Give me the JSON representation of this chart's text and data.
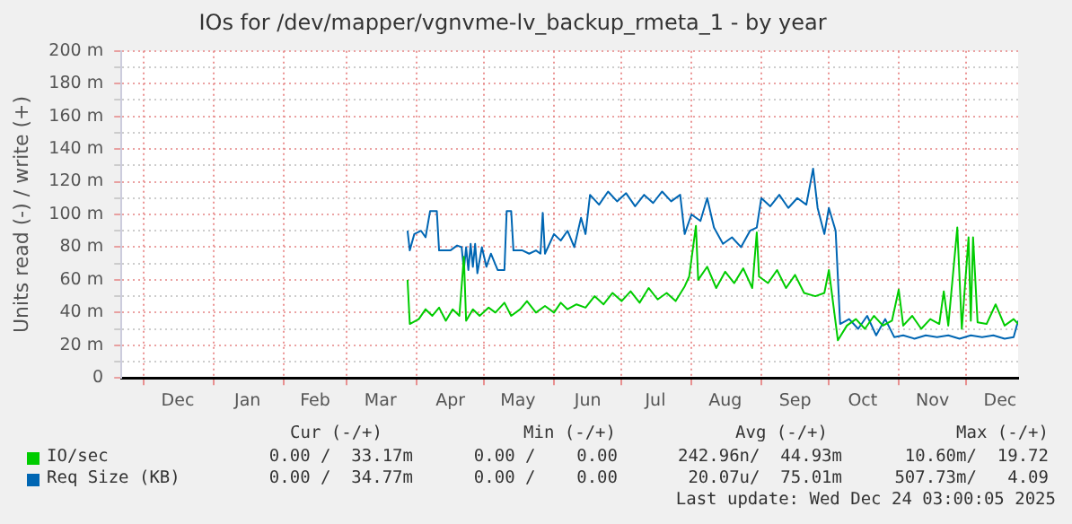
{
  "chart_data": {
    "type": "line",
    "title": "IOs for /dev/mapper/vgnvme-lv_backup_rmeta_1 - by year",
    "ylabel": "Units read (-) / write (+)",
    "xlim": [
      "2024-11-21",
      "2025-12-24"
    ],
    "xticks": [
      {
        "value": "2024-12-01",
        "label": null
      },
      {
        "value": "2024-12-16",
        "label": "Dec"
      },
      {
        "value": "2025-01-01",
        "label": null
      },
      {
        "value": "2025-01-16",
        "label": "Jan"
      },
      {
        "value": "2025-02-01",
        "label": null
      },
      {
        "value": "2025-02-15",
        "label": "Feb"
      },
      {
        "value": "2025-03-01",
        "label": null
      },
      {
        "value": "2025-03-16",
        "label": "Mar"
      },
      {
        "value": "2025-04-01",
        "label": null
      },
      {
        "value": "2025-04-16",
        "label": "Apr"
      },
      {
        "value": "2025-05-01",
        "label": null
      },
      {
        "value": "2025-05-16",
        "label": "May"
      },
      {
        "value": "2025-06-01",
        "label": null
      },
      {
        "value": "2025-06-16",
        "label": "Jun"
      },
      {
        "value": "2025-07-01",
        "label": null
      },
      {
        "value": "2025-07-16",
        "label": "Jul"
      },
      {
        "value": "2025-08-01",
        "label": null
      },
      {
        "value": "2025-08-16",
        "label": "Aug"
      },
      {
        "value": "2025-09-01",
        "label": null
      },
      {
        "value": "2025-09-16",
        "label": "Sep"
      },
      {
        "value": "2025-10-01",
        "label": null
      },
      {
        "value": "2025-10-16",
        "label": "Oct"
      },
      {
        "value": "2025-11-01",
        "label": null
      },
      {
        "value": "2025-11-16",
        "label": "Nov"
      },
      {
        "value": "2025-12-01",
        "label": null
      },
      {
        "value": "2025-12-16",
        "label": "Dec"
      }
    ],
    "ylim": [
      0,
      200
    ],
    "yticks": [
      0,
      {
        "value": 10,
        "label": null
      },
      {
        "value": 20,
        "label": "20 m"
      },
      {
        "value": 30,
        "label": null
      },
      {
        "value": 40,
        "label": "40 m"
      },
      {
        "value": 50,
        "label": null
      },
      {
        "value": 60,
        "label": "60 m"
      },
      {
        "value": 70,
        "label": null
      },
      {
        "value": 80,
        "label": "80 m"
      },
      {
        "value": 90,
        "label": null
      },
      {
        "value": 100,
        "label": "100 m"
      },
      {
        "value": 110,
        "label": null
      },
      {
        "value": 120,
        "label": "120 m"
      },
      {
        "value": 130,
        "label": null
      },
      {
        "value": 140,
        "label": "140 m"
      },
      {
        "value": 150,
        "label": null
      },
      {
        "value": 160,
        "label": "160 m"
      },
      {
        "value": 170,
        "label": null
      },
      {
        "value": 180,
        "label": "180 m"
      },
      {
        "value": 190,
        "label": null
      },
      {
        "value": 200,
        "label": "200 m"
      }
    ],
    "grid": true,
    "legend": "bottom",
    "marker": "none",
    "line_style": "solid",
    "series": [
      {
        "name": "IO/sec",
        "color": "#00cc00",
        "x": [
          "2025-03-28",
          "2025-03-29",
          "2025-04-02",
          "2025-04-05",
          "2025-04-08",
          "2025-04-11",
          "2025-04-14",
          "2025-04-17",
          "2025-04-20",
          "2025-04-22",
          "2025-04-23",
          "2025-04-26",
          "2025-04-29",
          "2025-05-03",
          "2025-05-06",
          "2025-05-10",
          "2025-05-13",
          "2025-05-17",
          "2025-05-20",
          "2025-05-24",
          "2025-05-28",
          "2025-06-01",
          "2025-06-04",
          "2025-06-07",
          "2025-06-11",
          "2025-06-15",
          "2025-06-19",
          "2025-06-23",
          "2025-06-27",
          "2025-07-01",
          "2025-07-05",
          "2025-07-09",
          "2025-07-13",
          "2025-07-17",
          "2025-07-21",
          "2025-07-25",
          "2025-07-29",
          "2025-07-31",
          "2025-08-03",
          "2025-08-04",
          "2025-08-08",
          "2025-08-12",
          "2025-08-16",
          "2025-08-20",
          "2025-08-24",
          "2025-08-28",
          "2025-08-30",
          "2025-08-31",
          "2025-09-04",
          "2025-09-08",
          "2025-09-12",
          "2025-09-16",
          "2025-09-20",
          "2025-09-25",
          "2025-09-29",
          "2025-10-01",
          "2025-10-05",
          "2025-10-09",
          "2025-10-13",
          "2025-10-17",
          "2025-10-21",
          "2025-10-25",
          "2025-10-29",
          "2025-11-01",
          "2025-11-03",
          "2025-11-07",
          "2025-11-11",
          "2025-11-15",
          "2025-11-19",
          "2025-11-21",
          "2025-11-23",
          "2025-11-27",
          "2025-11-29",
          "2025-12-02",
          "2025-12-03",
          "2025-12-04",
          "2025-12-06",
          "2025-12-10",
          "2025-12-14",
          "2025-12-18",
          "2025-12-22",
          "2025-12-24"
        ],
        "values": [
          60,
          33,
          36,
          42,
          38,
          43,
          35,
          42,
          38,
          74,
          35,
          42,
          38,
          43,
          40,
          46,
          38,
          42,
          47,
          40,
          44,
          40,
          46,
          42,
          45,
          43,
          50,
          45,
          52,
          47,
          53,
          46,
          55,
          48,
          52,
          47,
          56,
          62,
          93,
          60,
          68,
          55,
          65,
          58,
          67,
          55,
          89,
          62,
          58,
          66,
          55,
          63,
          52,
          50,
          52,
          66,
          23,
          32,
          36,
          30,
          38,
          32,
          35,
          54,
          32,
          38,
          30,
          36,
          33,
          53,
          32,
          92,
          30,
          86,
          35,
          86,
          34,
          33,
          45,
          32,
          36,
          33
        ]
      },
      {
        "name": "Req Size (KB)",
        "color": "#0066b3",
        "x": [
          "2025-03-28",
          "2025-03-29",
          "2025-03-31",
          "2025-04-03",
          "2025-04-05",
          "2025-04-07",
          "2025-04-10",
          "2025-04-11",
          "2025-04-16",
          "2025-04-19",
          "2025-04-21",
          "2025-04-22",
          "2025-04-23",
          "2025-04-24",
          "2025-04-25",
          "2025-04-26",
          "2025-04-27",
          "2025-04-28",
          "2025-04-30",
          "2025-05-02",
          "2025-05-04",
          "2025-05-07",
          "2025-05-10",
          "2025-05-11",
          "2025-05-13",
          "2025-05-14",
          "2025-05-18",
          "2025-05-21",
          "2025-05-24",
          "2025-05-26",
          "2025-05-27",
          "2025-05-28",
          "2025-06-01",
          "2025-06-04",
          "2025-06-07",
          "2025-06-10",
          "2025-06-13",
          "2025-06-15",
          "2025-06-17",
          "2025-06-21",
          "2025-06-25",
          "2025-06-29",
          "2025-07-03",
          "2025-07-07",
          "2025-07-11",
          "2025-07-15",
          "2025-07-19",
          "2025-07-23",
          "2025-07-27",
          "2025-07-29",
          "2025-08-01",
          "2025-08-05",
          "2025-08-08",
          "2025-08-11",
          "2025-08-15",
          "2025-08-19",
          "2025-08-23",
          "2025-08-27",
          "2025-08-30",
          "2025-09-01",
          "2025-09-05",
          "2025-09-09",
          "2025-09-13",
          "2025-09-17",
          "2025-09-21",
          "2025-09-24",
          "2025-09-26",
          "2025-09-29",
          "2025-10-01",
          "2025-10-04",
          "2025-10-06",
          "2025-10-10",
          "2025-10-14",
          "2025-10-18",
          "2025-10-22",
          "2025-10-26",
          "2025-10-30",
          "2025-11-03",
          "2025-11-08",
          "2025-11-13",
          "2025-11-18",
          "2025-11-23",
          "2025-11-28",
          "2025-12-03",
          "2025-12-08",
          "2025-12-13",
          "2025-12-18",
          "2025-12-22",
          "2025-12-24"
        ],
        "values": [
          90,
          78,
          88,
          90,
          86,
          102,
          102,
          78,
          78,
          81,
          80,
          66,
          80,
          66,
          82,
          68,
          82,
          64,
          80,
          68,
          76,
          66,
          66,
          102,
          102,
          78,
          78,
          76,
          78,
          76,
          101,
          76,
          88,
          84,
          90,
          80,
          98,
          88,
          112,
          106,
          114,
          108,
          113,
          105,
          112,
          107,
          114,
          108,
          112,
          88,
          100,
          96,
          110,
          92,
          82,
          86,
          80,
          90,
          92,
          110,
          105,
          112,
          104,
          110,
          106,
          128,
          104,
          88,
          104,
          90,
          33,
          36,
          30,
          38,
          26,
          36,
          25,
          26,
          24,
          26,
          25,
          26,
          24,
          26,
          25,
          26,
          24,
          25,
          35
        ]
      }
    ],
    "annotations": [
      "Cur (-/+)",
      "Min (-/+)",
      "Avg (-/+)",
      "Max (-/+)",
      "0.00 /  33.17m",
      "0.00 /    0.00",
      "242.96n/  44.93m",
      "10.60m/  19.72",
      "0.00 /  34.77m",
      "0.00 /    0.00",
      "20.07u/  75.01m",
      "507.73m/   4.09",
      "Last update: Wed Dec 24 03:00:05 2025"
    ]
  }
}
